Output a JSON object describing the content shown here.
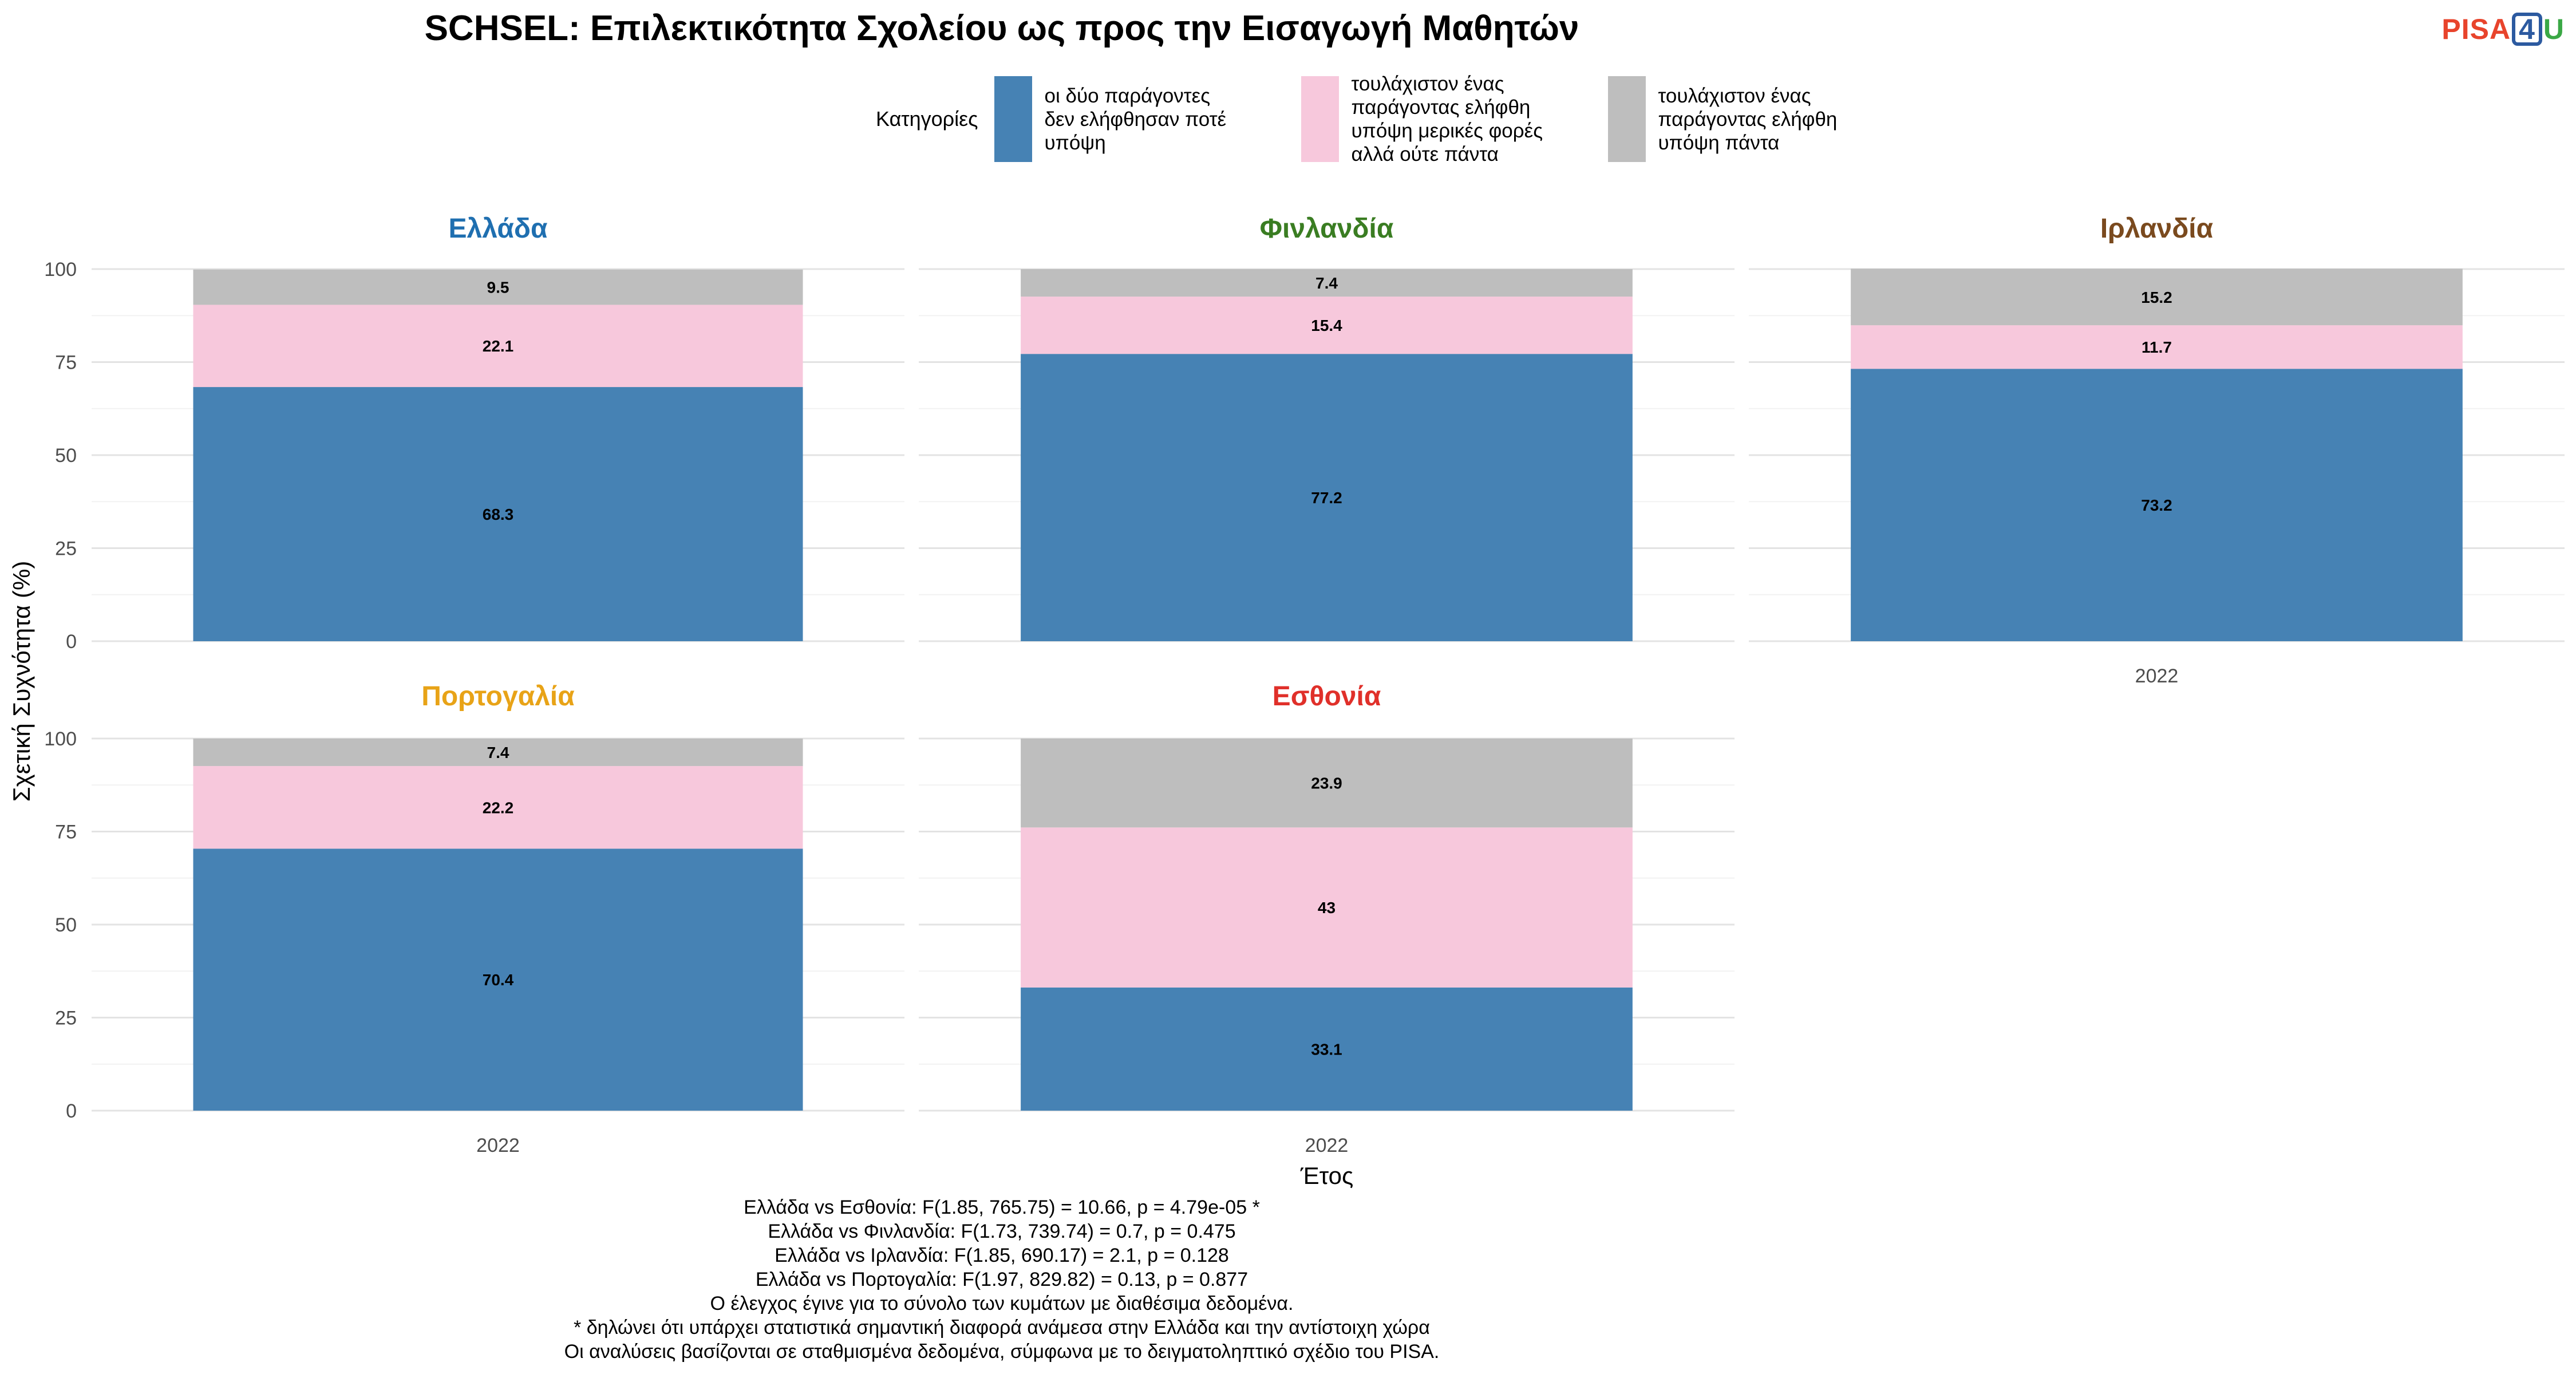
{
  "title": "SCHSEL: Επιλεκτικότητα Σχολείου ως προς την Εισαγωγή Μαθητών",
  "logo": {
    "part1": "PISA",
    "part2": "4",
    "part3": "U"
  },
  "legend": {
    "title": "Κατηγορίες",
    "items": [
      {
        "label": "οι δύο παράγοντες\nδεν ελήφθησαν ποτέ\nυπόψη",
        "color": "#4682B4"
      },
      {
        "label": "τουλάχιστον ένας\nπαράγοντας ελήφθη\nυπόψη μερικές φορές\nαλλά ούτε πάντα",
        "color": "#F7C8DC"
      },
      {
        "label": "τουλάχιστον ένας\nπαράγοντας ελήφθη\nυπόψη πάντα",
        "color": "#BEBEBE"
      }
    ]
  },
  "chart_data": {
    "type": "bar",
    "stacked": true,
    "facets": [
      {
        "name": "Ελλάδα",
        "color": "#1f6fb0",
        "categories": [
          "2022"
        ],
        "values": [
          68.3,
          22.1,
          9.5
        ]
      },
      {
        "name": "Φινλανδία",
        "color": "#3a7d22",
        "categories": [
          "2022"
        ],
        "values": [
          77.2,
          15.4,
          7.4
        ]
      },
      {
        "name": "Ιρλανδία",
        "color": "#7a4a1e",
        "categories": [
          "2022"
        ],
        "values": [
          73.2,
          11.7,
          15.2
        ]
      },
      {
        "name": "Πορτογαλία",
        "color": "#e8a317",
        "categories": [
          "2022"
        ],
        "values": [
          70.4,
          22.2,
          7.4
        ]
      },
      {
        "name": "Εσθονία",
        "color": "#e0302a",
        "categories": [
          "2022"
        ],
        "values": [
          33.1,
          43,
          23.9
        ]
      }
    ],
    "value_labels": [
      [
        "68.3",
        "22.1",
        "9.5"
      ],
      [
        "77.2",
        "15.4",
        "7.4"
      ],
      [
        "73.2",
        "11.7",
        "15.2"
      ],
      [
        "70.4",
        "22.2",
        "7.4"
      ],
      [
        "33.1",
        "43",
        "23.9"
      ]
    ],
    "xlabel": "Έτος",
    "ylabel": "Σχετική Συχνότητα (%)",
    "ylim": [
      0,
      100
    ],
    "yticks": [
      0,
      25,
      50,
      75,
      100
    ],
    "grid": true,
    "legend_position": "top"
  },
  "notes": [
    "Ελλάδα vs Εσθονία: F(1.85, 765.75) = 10.66, p = 4.79e-05 *",
    "Ελλάδα vs Φινλανδία: F(1.73, 739.74) = 0.7, p = 0.475",
    "Ελλάδα vs Ιρλανδία: F(1.85, 690.17) = 2.1, p = 0.128",
    "Ελλάδα vs Πορτογαλία: F(1.97, 829.82) = 0.13, p = 0.877",
    "Ο έλεγχος έγινε για το σύνολο των κυμάτων με διαθέσιμα δεδομένα.",
    "* δηλώνει ότι υπάρχει στατιστικά σημαντική διαφορά ανάμεσα στην Ελλάδα και την αντίστοιχη χώρα",
    "Οι αναλύσεις βασίζονται σε σταθμισμένα δεδομένα, σύμφωνα με το δειγματοληπτικό σχέδιο του PISA."
  ]
}
